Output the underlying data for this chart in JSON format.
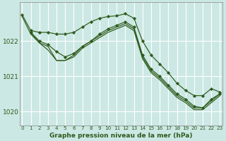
{
  "bg_color": "#cce8e4",
  "grid_color": "#ffffff",
  "line_color": "#2d5a1b",
  "xlabel": "Graphe pression niveau de la mer (hPa)",
  "xlabel_color": "#2d5a1b",
  "ylim": [
    1019.6,
    1023.1
  ],
  "xlim": [
    -0.3,
    23.3
  ],
  "yticks": [
    1020,
    1021,
    1022
  ],
  "xticks": [
    0,
    1,
    2,
    3,
    4,
    5,
    6,
    7,
    8,
    9,
    10,
    11,
    12,
    13,
    14,
    15,
    16,
    17,
    18,
    19,
    20,
    21,
    22,
    23
  ],
  "series": [
    {
      "x": [
        0,
        1,
        2,
        3,
        4,
        5,
        6,
        7,
        8,
        9,
        10,
        11,
        12,
        13,
        14,
        15,
        16,
        17,
        18,
        19,
        20,
        21,
        22,
        23
      ],
      "y": [
        1022.75,
        1022.3,
        1022.25,
        1022.25,
        1022.2,
        1022.2,
        1022.25,
        1022.4,
        1022.55,
        1022.65,
        1022.7,
        1022.72,
        1022.78,
        1022.65,
        1022.0,
        1021.6,
        1021.35,
        1021.1,
        1020.8,
        1020.6,
        1020.45,
        1020.45,
        1020.65,
        1020.55
      ],
      "has_markers": true
    },
    {
      "x": [
        1,
        2,
        3,
        4,
        5,
        6,
        7,
        8,
        9,
        10,
        11,
        12,
        13,
        14,
        15,
        16,
        17,
        18,
        19,
        20,
        21,
        22,
        23
      ],
      "y": [
        1022.25,
        1022.0,
        1021.9,
        1021.7,
        1021.55,
        1021.65,
        1021.85,
        1022.0,
        1022.2,
        1022.35,
        1022.45,
        1022.55,
        1022.4,
        1021.6,
        1021.2,
        1021.0,
        1020.75,
        1020.5,
        1020.35,
        1020.15,
        1020.1,
        1020.35,
        1020.5
      ],
      "has_markers": true
    },
    {
      "x": [
        1,
        2,
        3,
        4,
        5,
        6,
        7,
        8,
        9,
        10,
        11,
        12,
        13,
        14,
        15,
        16,
        17,
        18,
        19,
        20,
        21,
        22,
        23
      ],
      "y": [
        1022.25,
        1021.95,
        1021.85,
        1021.45,
        1021.45,
        1021.6,
        1021.85,
        1022.0,
        1022.15,
        1022.3,
        1022.4,
        1022.5,
        1022.35,
        1021.55,
        1021.15,
        1020.95,
        1020.7,
        1020.45,
        1020.3,
        1020.1,
        1020.1,
        1020.3,
        1020.5
      ],
      "has_markers": false
    },
    {
      "x": [
        0,
        1,
        2,
        3,
        4,
        5,
        6,
        7,
        8,
        9,
        10,
        11,
        12,
        13,
        14,
        15,
        16,
        17,
        18,
        19,
        20,
        21,
        22,
        23
      ],
      "y": [
        1022.7,
        1022.2,
        1021.95,
        1021.75,
        1021.45,
        1021.45,
        1021.55,
        1021.8,
        1021.95,
        1022.1,
        1022.25,
        1022.35,
        1022.45,
        1022.3,
        1021.5,
        1021.1,
        1020.9,
        1020.65,
        1020.4,
        1020.25,
        1020.05,
        1020.05,
        1020.25,
        1020.45
      ],
      "has_markers": false
    }
  ]
}
